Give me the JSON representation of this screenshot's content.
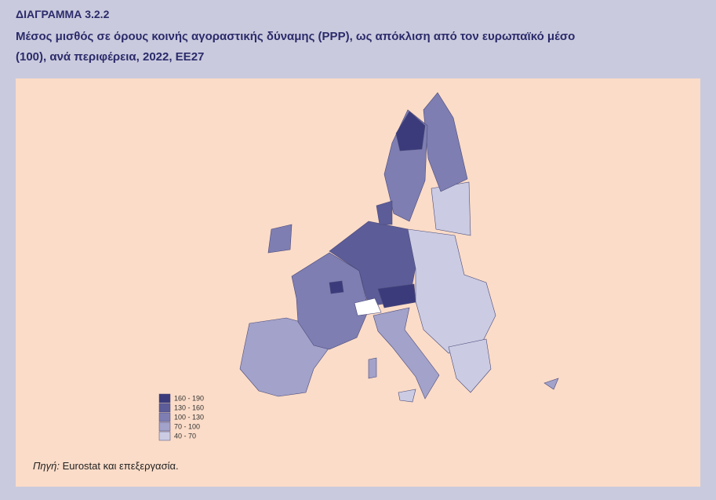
{
  "header": {
    "label": "ΔΙΑΓΡΑΜΜΑ 3.2.2",
    "title_line1": "Μέσος μισθός σε όρους κοινής αγοραστικής δύναμης (PPP), ως απόκλιση από τον ευρωπαϊκό μέσο",
    "title_line2": "(100), ανά περιφέρεια, 2022, ΕΕ27"
  },
  "legend": {
    "items": [
      {
        "label": "160 - 190",
        "color": "#3b3b7c"
      },
      {
        "label": "130 - 160",
        "color": "#5c5c98"
      },
      {
        "label": "100 - 130",
        "color": "#7e7eb2"
      },
      {
        "label": "70 - 100",
        "color": "#a2a2ca"
      },
      {
        "label": "40 - 70",
        "color": "#cbcbe3"
      }
    ]
  },
  "source": {
    "label": "Πηγή:",
    "text": "Eurostat και επεξεργασία."
  }
}
